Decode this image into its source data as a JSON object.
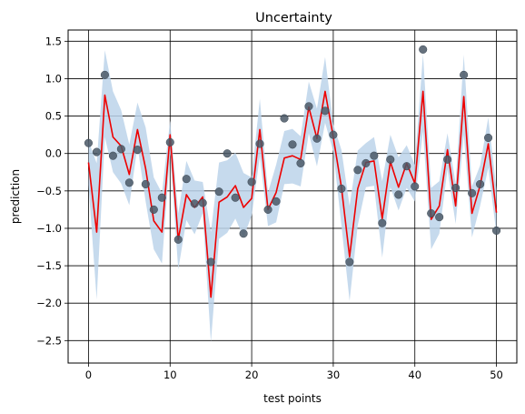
{
  "chart_data": {
    "type": "line",
    "title": "Uncertainty",
    "xlabel": "test points",
    "ylabel": "prediction",
    "xlim": [
      -2.5,
      52.5
    ],
    "ylim": [
      -2.8,
      1.65
    ],
    "x_ticks": [
      0,
      10,
      20,
      30,
      40,
      50
    ],
    "x_tick_labels": [
      "0",
      "10",
      "20",
      "30",
      "40",
      "50"
    ],
    "y_ticks": [
      -2.5,
      -2.0,
      -1.5,
      -1.0,
      -0.5,
      0.0,
      0.5,
      1.0,
      1.5
    ],
    "y_tick_labels": [
      "−2.5",
      "−2.0",
      "−1.5",
      "−1.0",
      "−0.5",
      "0.0",
      "0.5",
      "1.0",
      "1.5"
    ],
    "grid": true,
    "colors": {
      "band": "#bcd4ea",
      "line": "#ee0000",
      "points": "#4a5866"
    },
    "x": [
      0,
      1,
      2,
      3,
      4,
      5,
      6,
      7,
      8,
      9,
      10,
      11,
      12,
      13,
      14,
      15,
      16,
      17,
      18,
      19,
      20,
      21,
      22,
      23,
      24,
      25,
      26,
      27,
      28,
      29,
      30,
      31,
      32,
      33,
      34,
      35,
      36,
      37,
      38,
      39,
      40,
      41,
      42,
      43,
      44,
      45,
      46,
      47,
      48,
      49,
      50
    ],
    "series": [
      {
        "role": "observed",
        "style": "scatter",
        "values": [
          0.14,
          0.02,
          1.05,
          -0.03,
          0.06,
          -0.39,
          0.05,
          -0.41,
          -0.75,
          -0.59,
          0.15,
          -1.15,
          -0.34,
          -0.67,
          -0.66,
          -1.45,
          -0.51,
          0.0,
          -0.59,
          -1.07,
          -0.38,
          0.13,
          -0.75,
          -0.64,
          0.47,
          0.12,
          -0.13,
          0.63,
          0.2,
          0.57,
          0.25,
          -0.47,
          -1.45,
          -0.22,
          -0.13,
          -0.03,
          -0.93,
          -0.08,
          -0.55,
          -0.17,
          -0.44,
          1.39,
          -0.8,
          -0.85,
          -0.08,
          -0.46,
          1.05,
          -0.53,
          -0.41,
          0.21,
          -1.03
        ]
      },
      {
        "role": "mean",
        "style": "line",
        "values": [
          -0.12,
          -1.05,
          0.78,
          0.22,
          0.1,
          -0.28,
          0.32,
          -0.2,
          -0.9,
          -1.05,
          0.25,
          -1.15,
          -0.55,
          -0.72,
          -0.58,
          -1.92,
          -0.65,
          -0.58,
          -0.43,
          -0.72,
          -0.6,
          0.32,
          -0.75,
          -0.52,
          -0.06,
          -0.03,
          -0.08,
          0.62,
          0.2,
          0.83,
          0.22,
          -0.45,
          -1.38,
          -0.47,
          -0.12,
          -0.1,
          -0.87,
          -0.11,
          -0.45,
          -0.13,
          -0.4,
          0.83,
          -0.88,
          -0.7,
          0.05,
          -0.7,
          0.76,
          -0.8,
          -0.43,
          0.13,
          -0.79
        ]
      },
      {
        "role": "band-upper",
        "style": "area",
        "values": [
          0.17,
          -0.13,
          1.38,
          0.83,
          0.58,
          0.12,
          0.68,
          0.35,
          -0.32,
          -0.53,
          0.44,
          -0.8,
          -0.1,
          -0.36,
          -0.38,
          -1.05,
          -0.12,
          -0.09,
          0.01,
          -0.26,
          -0.32,
          0.73,
          -0.52,
          -0.15,
          0.3,
          0.33,
          0.23,
          0.96,
          0.6,
          1.29,
          0.39,
          0.05,
          -0.7,
          0.04,
          0.14,
          0.22,
          -0.37,
          0.25,
          -0.05,
          0.11,
          -0.15,
          1.33,
          -0.46,
          -0.37,
          0.27,
          -0.4,
          1.32,
          -0.44,
          -0.16,
          0.48,
          -0.48
        ]
      },
      {
        "role": "band-lower",
        "style": "area",
        "values": [
          -0.42,
          -1.95,
          0.22,
          -0.25,
          -0.4,
          -0.69,
          0.1,
          -0.64,
          -1.28,
          -1.47,
          0.0,
          -1.55,
          -0.89,
          -1.08,
          -0.8,
          -2.52,
          -1.14,
          -1.06,
          -0.87,
          -1.12,
          -0.83,
          -0.04,
          -0.97,
          -0.92,
          -0.41,
          -0.4,
          -0.44,
          0.27,
          -0.17,
          0.41,
          0.03,
          -0.96,
          -1.97,
          -0.96,
          -0.45,
          -0.43,
          -1.39,
          -0.45,
          -0.76,
          -0.46,
          -0.64,
          0.3,
          -1.28,
          -1.07,
          -0.21,
          -0.94,
          0.25,
          -1.12,
          -0.7,
          -0.19,
          -1.08
        ]
      }
    ]
  }
}
